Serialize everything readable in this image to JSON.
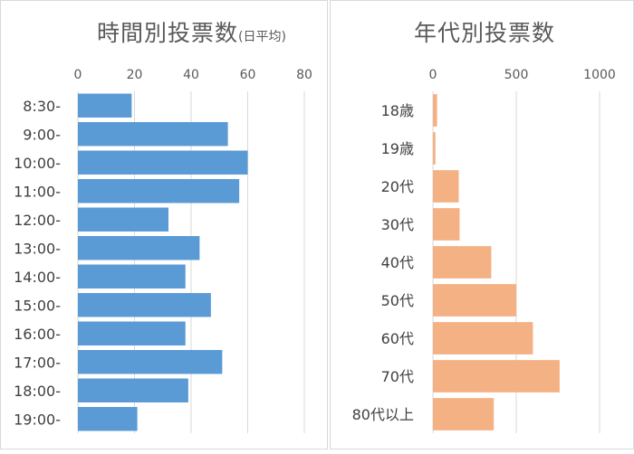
{
  "chart_data": [
    {
      "type": "bar",
      "orientation": "horizontal",
      "title": "時間別投票数",
      "subtitle": "(日平均)",
      "categories": [
        "8:30-",
        "9:00-",
        "10:00-",
        "11:00-",
        "12:00-",
        "13:00-",
        "14:00-",
        "15:00-",
        "16:00-",
        "17:00-",
        "18:00-",
        "19:00-"
      ],
      "values": [
        19,
        53,
        60,
        57,
        32,
        43,
        38,
        47,
        38,
        51,
        39,
        21
      ],
      "xlim": [
        0,
        80
      ],
      "ticks": [
        0,
        20,
        40,
        60,
        80
      ],
      "tick_labels": [
        "0",
        "20",
        "40",
        "60",
        "80"
      ],
      "axis_position": "top",
      "grid": true,
      "color": "#5b9bd5"
    },
    {
      "type": "bar",
      "orientation": "horizontal",
      "title": "年代別投票数",
      "categories": [
        "18歳",
        "19歳",
        "20代",
        "30代",
        "40代",
        "50代",
        "60代",
        "70代",
        "80代以上"
      ],
      "values": [
        25,
        15,
        155,
        160,
        350,
        500,
        600,
        760,
        365
      ],
      "xlim": [
        0,
        1000
      ],
      "ticks": [
        0,
        500,
        1000
      ],
      "tick_labels": [
        "0",
        "500",
        "1000"
      ],
      "axis_position": "top",
      "grid": true,
      "color": "#f4b183"
    }
  ]
}
